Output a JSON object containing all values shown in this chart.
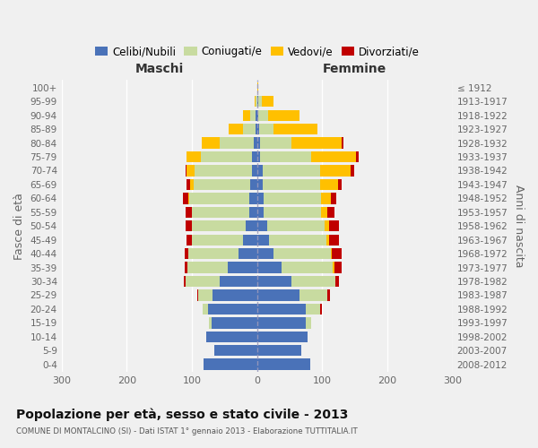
{
  "age_groups": [
    "0-4",
    "5-9",
    "10-14",
    "15-19",
    "20-24",
    "25-29",
    "30-34",
    "35-39",
    "40-44",
    "45-49",
    "50-54",
    "55-59",
    "60-64",
    "65-69",
    "70-74",
    "75-79",
    "80-84",
    "85-89",
    "90-94",
    "95-99",
    "100+"
  ],
  "birth_years": [
    "2008-2012",
    "2003-2007",
    "1998-2002",
    "1993-1997",
    "1988-1992",
    "1983-1987",
    "1978-1982",
    "1973-1977",
    "1968-1972",
    "1963-1967",
    "1958-1962",
    "1953-1957",
    "1948-1952",
    "1943-1947",
    "1938-1942",
    "1933-1937",
    "1928-1932",
    "1923-1927",
    "1918-1922",
    "1913-1917",
    "≤ 1912"
  ],
  "male_celibi": [
    82,
    65,
    78,
    70,
    75,
    68,
    58,
    45,
    28,
    22,
    18,
    12,
    12,
    10,
    8,
    8,
    5,
    3,
    2,
    0,
    0
  ],
  "male_coniugati": [
    0,
    0,
    0,
    4,
    8,
    22,
    52,
    62,
    78,
    78,
    82,
    88,
    92,
    88,
    88,
    78,
    52,
    18,
    8,
    2,
    0
  ],
  "male_vedovi": [
    0,
    0,
    0,
    0,
    0,
    0,
    0,
    0,
    0,
    0,
    0,
    0,
    2,
    5,
    12,
    22,
    28,
    22,
    12,
    2,
    0
  ],
  "male_divorziati": [
    0,
    0,
    0,
    0,
    0,
    2,
    2,
    4,
    5,
    8,
    10,
    10,
    8,
    5,
    2,
    0,
    0,
    0,
    0,
    0,
    0
  ],
  "female_nubili": [
    82,
    68,
    78,
    75,
    75,
    65,
    52,
    38,
    25,
    18,
    15,
    10,
    10,
    8,
    8,
    5,
    4,
    3,
    2,
    2,
    0
  ],
  "female_coniugate": [
    0,
    0,
    0,
    8,
    22,
    42,
    68,
    78,
    88,
    88,
    88,
    88,
    88,
    88,
    88,
    78,
    48,
    22,
    15,
    5,
    0
  ],
  "female_vedove": [
    0,
    0,
    0,
    0,
    0,
    0,
    0,
    2,
    2,
    5,
    8,
    10,
    15,
    28,
    48,
    68,
    78,
    68,
    48,
    18,
    2
  ],
  "female_divorziate": [
    0,
    0,
    0,
    0,
    2,
    5,
    5,
    12,
    15,
    15,
    15,
    10,
    8,
    5,
    5,
    5,
    2,
    0,
    0,
    0,
    0
  ],
  "color_celibi": "#4a72b8",
  "color_coniugati": "#c8dba0",
  "color_vedovi": "#ffc000",
  "color_divorziati": "#c00000",
  "bg_color": "#f0f0f0",
  "grid_color": "#ffffff",
  "title": "Popolazione per età, sesso e stato civile - 2013",
  "subtitle": "COMUNE DI MONTALCINO (SI) - Dati ISTAT 1° gennaio 2013 - Elaborazione TUTTITALIA.IT",
  "legend_labels": [
    "Celibi/Nubili",
    "Coniugati/e",
    "Vedovi/e",
    "Divorziati/e"
  ],
  "label_maschi": "Maschi",
  "label_femmine": "Femmine",
  "label_fasce": "Fasce di età",
  "label_anni": "Anni di nascita",
  "xlim": 300
}
